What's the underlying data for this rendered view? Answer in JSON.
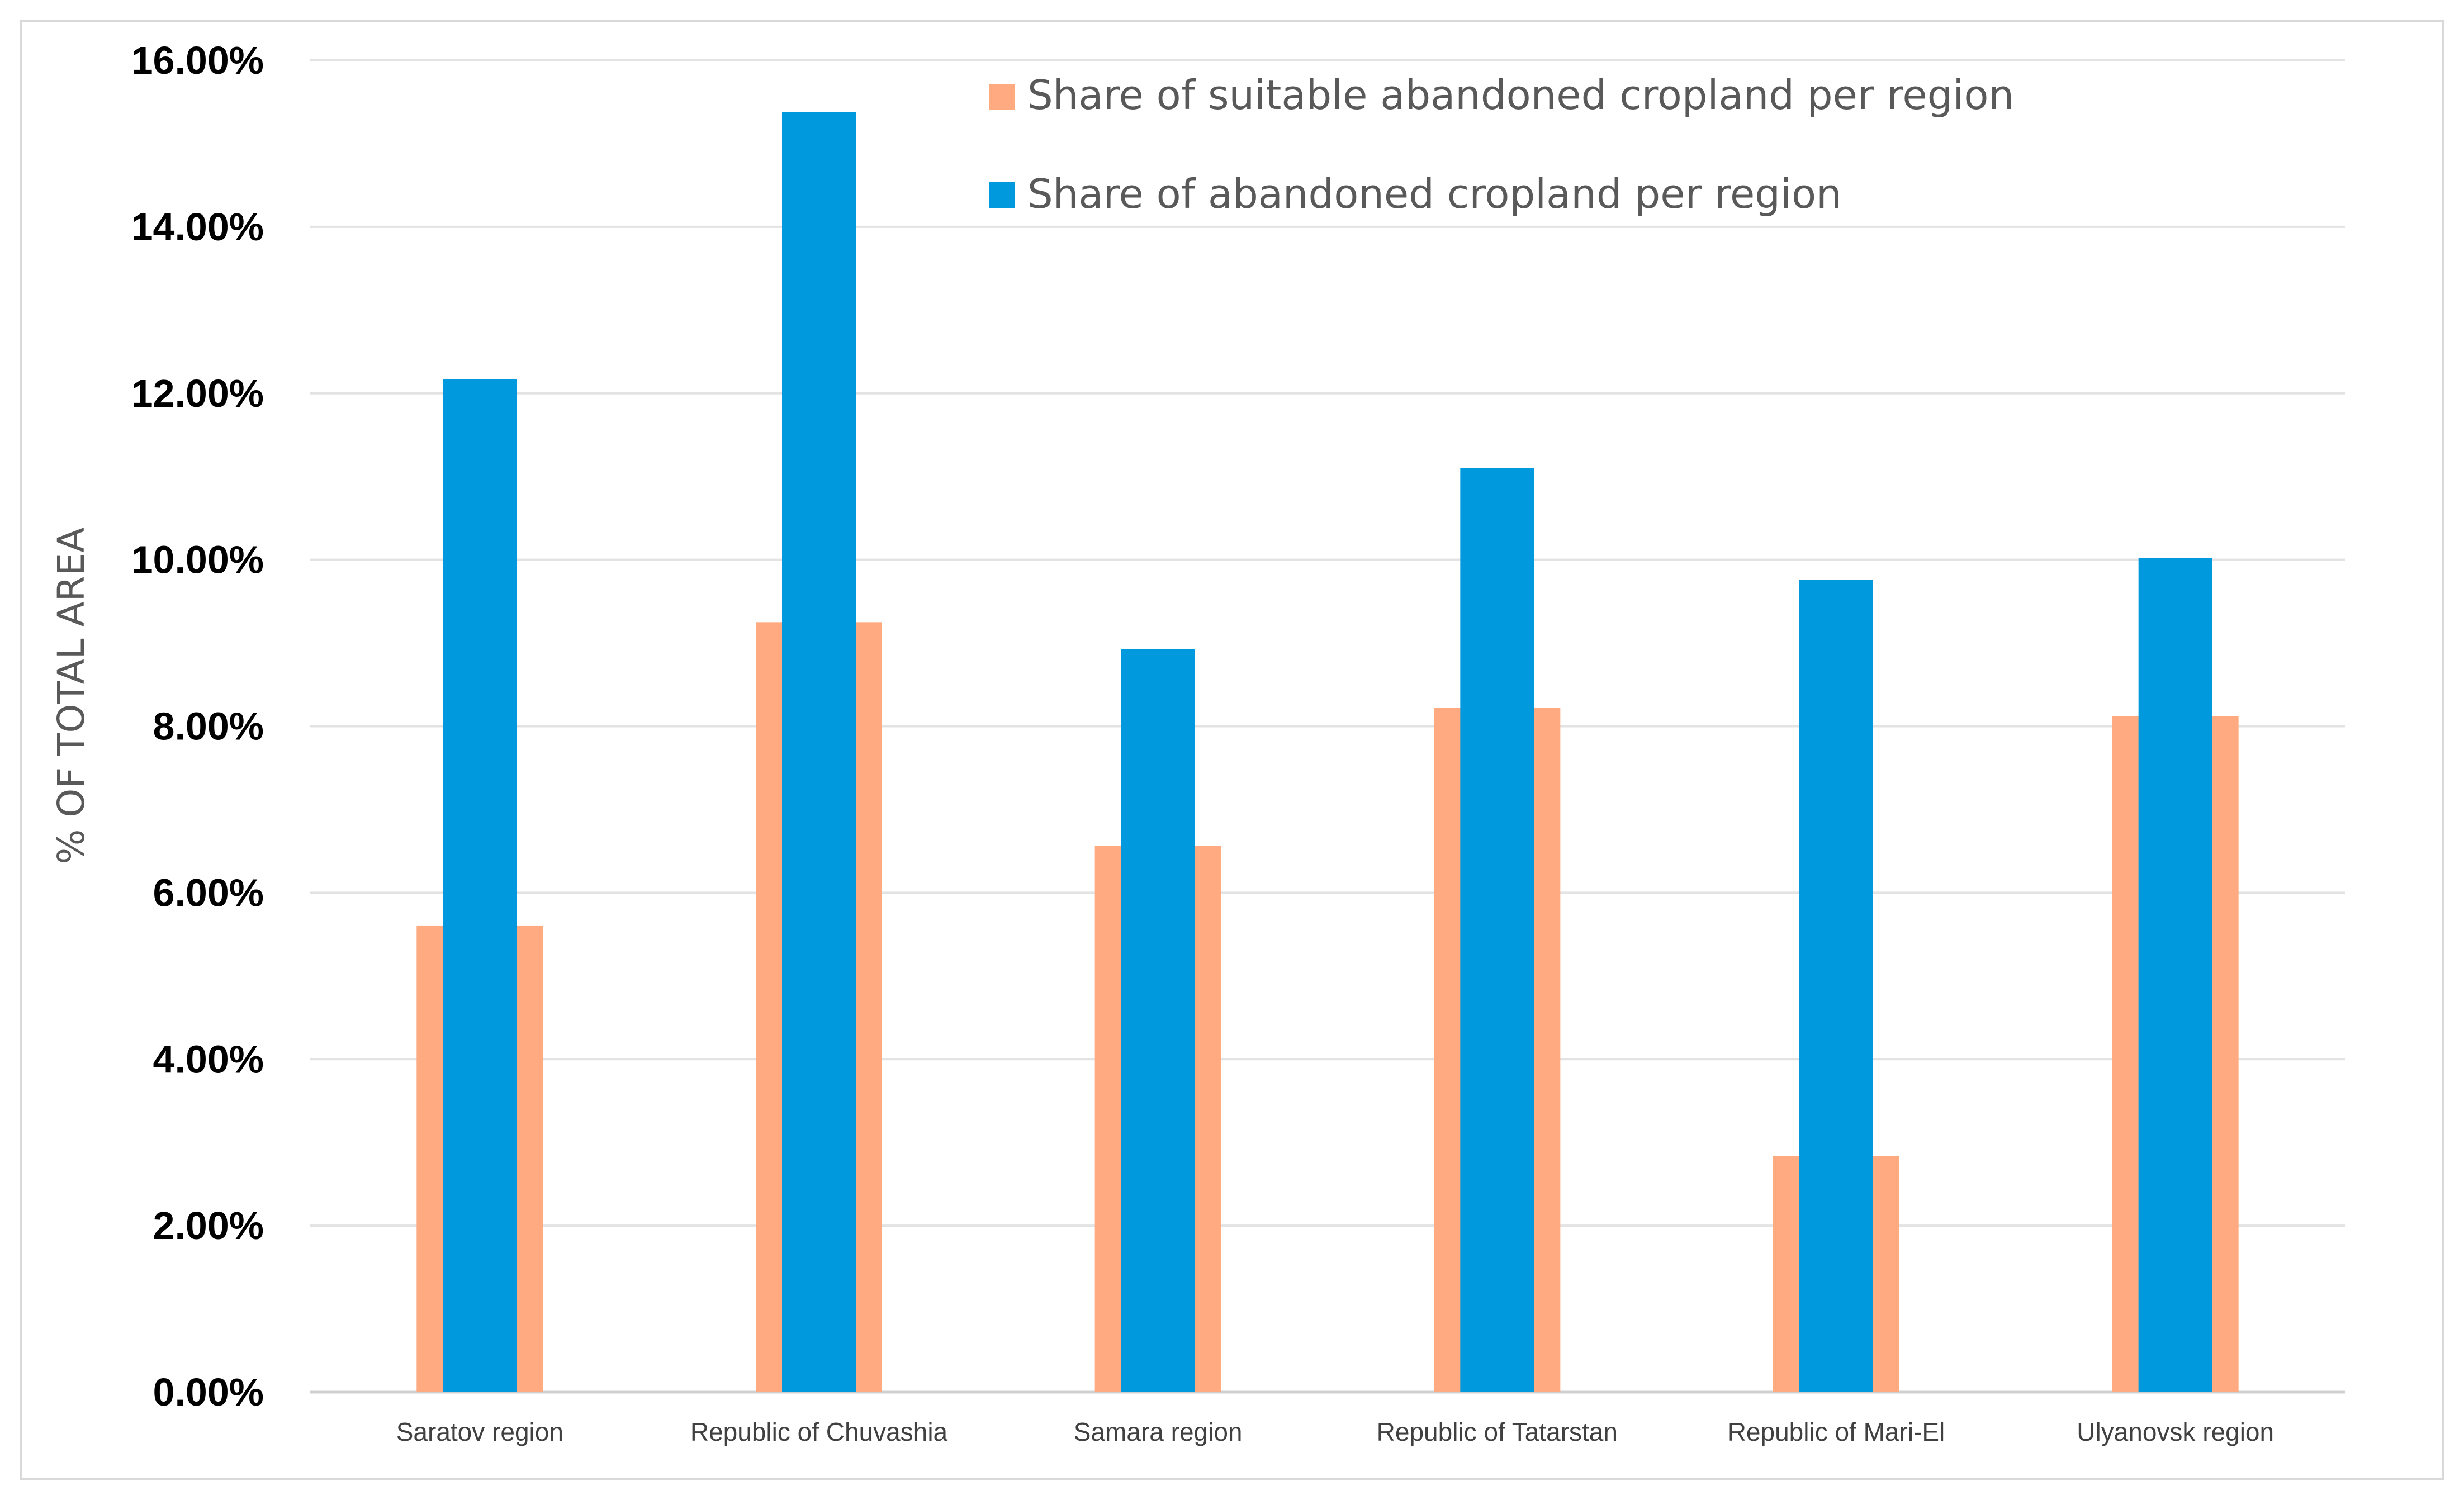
{
  "chart_data": {
    "type": "bar",
    "categories": [
      "Saratov region",
      "Republic of Chuvashia",
      "Samara region",
      "Republic of Tatarstan",
      "Republic of Mari-El",
      "Ulyanovsk region"
    ],
    "series": [
      {
        "name": "Share of suitable abandoned cropland per region",
        "values": [
          5.6,
          9.25,
          6.56,
          8.22,
          2.84,
          8.12
        ],
        "color": "#FFAA80"
      },
      {
        "name": "Share of abandoned cropland per region",
        "values": [
          12.17,
          15.38,
          8.93,
          11.1,
          9.76,
          10.02
        ],
        "color": "#0099DD"
      }
    ],
    "title": "",
    "xlabel": "",
    "ylabel": "% OF TOTAL AREA",
    "ylim": [
      0,
      16
    ],
    "yticks": [
      "0.00%",
      "2.00%",
      "4.00%",
      "6.00%",
      "8.00%",
      "10.00%",
      "12.00%",
      "14.00%",
      "16.00%"
    ],
    "grid": true,
    "legend_placement": "top-center"
  }
}
